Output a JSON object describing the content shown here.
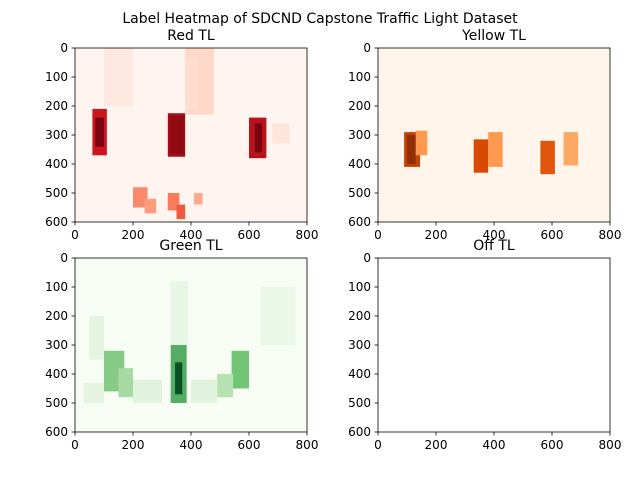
{
  "figure": {
    "title": "Label Heatmap of SDCND Capstone Traffic Light Dataset"
  },
  "chart_data": [
    {
      "type": "heatmap",
      "title": "Red TL",
      "cmap": "Reds",
      "xlim": [
        0,
        800
      ],
      "ylim": [
        0,
        600
      ],
      "xticks": [
        0,
        200,
        400,
        600,
        800
      ],
      "yticks": [
        0,
        100,
        200,
        300,
        400,
        500,
        600
      ],
      "y_inverted": true,
      "background": "#fff5f0",
      "regions": [
        {
          "x": [
            60,
            110
          ],
          "y": [
            210,
            370
          ],
          "intensity": 0.75
        },
        {
          "x": [
            70,
            100
          ],
          "y": [
            240,
            340
          ],
          "intensity": 0.95
        },
        {
          "x": [
            320,
            380
          ],
          "y": [
            225,
            375
          ],
          "intensity": 0.85
        },
        {
          "x": [
            330,
            375
          ],
          "y": [
            235,
            365
          ],
          "intensity": 0.9
        },
        {
          "x": [
            600,
            660
          ],
          "y": [
            240,
            380
          ],
          "intensity": 0.8
        },
        {
          "x": [
            620,
            645
          ],
          "y": [
            260,
            360
          ],
          "intensity": 0.95
        },
        {
          "x": [
            380,
            480
          ],
          "y": [
            0,
            230
          ],
          "intensity": 0.12
        },
        {
          "x": [
            380,
            420
          ],
          "y": [
            30,
            210
          ],
          "intensity": 0.1
        },
        {
          "x": [
            200,
            250
          ],
          "y": [
            480,
            550
          ],
          "intensity": 0.4
        },
        {
          "x": [
            240,
            280
          ],
          "y": [
            520,
            570
          ],
          "intensity": 0.35
        },
        {
          "x": [
            320,
            360
          ],
          "y": [
            500,
            560
          ],
          "intensity": 0.45
        },
        {
          "x": [
            350,
            380
          ],
          "y": [
            540,
            590
          ],
          "intensity": 0.55
        },
        {
          "x": [
            410,
            440
          ],
          "y": [
            500,
            540
          ],
          "intensity": 0.3
        },
        {
          "x": [
            100,
            200
          ],
          "y": [
            0,
            200
          ],
          "intensity": 0.05
        },
        {
          "x": [
            680,
            740
          ],
          "y": [
            260,
            330
          ],
          "intensity": 0.07
        }
      ]
    },
    {
      "type": "heatmap",
      "title": "Yellow TL",
      "cmap": "Oranges",
      "xlim": [
        0,
        800
      ],
      "ylim": [
        0,
        600
      ],
      "xticks": [
        0,
        200,
        400,
        600,
        800
      ],
      "yticks": [
        0,
        100,
        200,
        300,
        400,
        500,
        600
      ],
      "y_inverted": true,
      "background": "#fff5eb",
      "regions": [
        {
          "x": [
            90,
            145
          ],
          "y": [
            290,
            410
          ],
          "intensity": 0.8
        },
        {
          "x": [
            100,
            130
          ],
          "y": [
            300,
            400
          ],
          "intensity": 0.95
        },
        {
          "x": [
            130,
            170
          ],
          "y": [
            285,
            370
          ],
          "intensity": 0.45
        },
        {
          "x": [
            330,
            380
          ],
          "y": [
            315,
            430
          ],
          "intensity": 0.75
        },
        {
          "x": [
            380,
            430
          ],
          "y": [
            290,
            410
          ],
          "intensity": 0.45
        },
        {
          "x": [
            560,
            610
          ],
          "y": [
            320,
            435
          ],
          "intensity": 0.7
        },
        {
          "x": [
            640,
            690
          ],
          "y": [
            290,
            405
          ],
          "intensity": 0.4
        }
      ]
    },
    {
      "type": "heatmap",
      "title": "Green TL",
      "cmap": "Greens",
      "xlim": [
        0,
        800
      ],
      "ylim": [
        0,
        600
      ],
      "xticks": [
        0,
        200,
        400,
        600,
        800
      ],
      "yticks": [
        0,
        100,
        200,
        300,
        400,
        500,
        600
      ],
      "y_inverted": true,
      "background": "#f7fcf5",
      "regions": [
        {
          "x": [
            100,
            170
          ],
          "y": [
            320,
            460
          ],
          "intensity": 0.45
        },
        {
          "x": [
            150,
            200
          ],
          "y": [
            380,
            480
          ],
          "intensity": 0.35
        },
        {
          "x": [
            330,
            385
          ],
          "y": [
            300,
            500
          ],
          "intensity": 0.6
        },
        {
          "x": [
            345,
            370
          ],
          "y": [
            360,
            470
          ],
          "intensity": 0.95
        },
        {
          "x": [
            540,
            600
          ],
          "y": [
            320,
            450
          ],
          "intensity": 0.5
        },
        {
          "x": [
            490,
            545
          ],
          "y": [
            400,
            480
          ],
          "intensity": 0.3
        },
        {
          "x": [
            50,
            100
          ],
          "y": [
            200,
            350
          ],
          "intensity": 0.1
        },
        {
          "x": [
            330,
            390
          ],
          "y": [
            80,
            300
          ],
          "intensity": 0.08
        },
        {
          "x": [
            200,
            300
          ],
          "y": [
            420,
            500
          ],
          "intensity": 0.12
        },
        {
          "x": [
            400,
            490
          ],
          "y": [
            420,
            500
          ],
          "intensity": 0.12
        },
        {
          "x": [
            640,
            760
          ],
          "y": [
            100,
            300
          ],
          "intensity": 0.06
        },
        {
          "x": [
            30,
            100
          ],
          "y": [
            430,
            500
          ],
          "intensity": 0.1
        }
      ]
    },
    {
      "type": "heatmap",
      "title": "Off TL",
      "cmap": "Greys",
      "xlim": [
        0,
        800
      ],
      "ylim": [
        0,
        600
      ],
      "xticks": [
        0,
        200,
        400,
        600,
        800
      ],
      "yticks": [
        0,
        100,
        200,
        300,
        400,
        500,
        600
      ],
      "y_inverted": true,
      "background": "#ffffff",
      "regions": []
    }
  ]
}
